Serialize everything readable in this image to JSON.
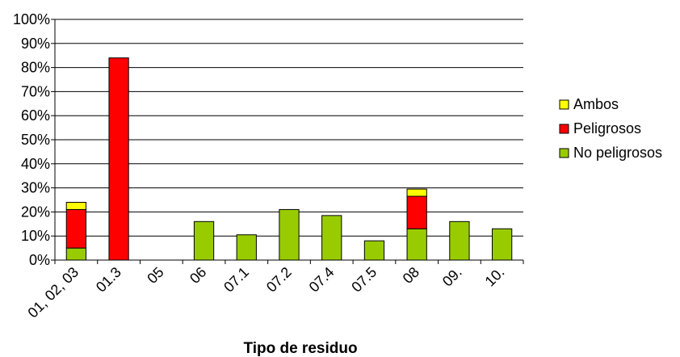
{
  "chart_data": {
    "type": "bar",
    "stacked": true,
    "title": "",
    "xlabel": "Tipo de residuo",
    "ylabel": "",
    "ylim": [
      0,
      100
    ],
    "yticks": [
      "0%",
      "10%",
      "20%",
      "30%",
      "40%",
      "50%",
      "60%",
      "70%",
      "80%",
      "90%",
      "100%"
    ],
    "categories": [
      "01, 02, 03",
      "01.3",
      "05",
      "06",
      "07.1",
      "07.2",
      "07.4",
      "07.5",
      "08",
      "09.",
      "10."
    ],
    "series": [
      {
        "name": "No peligrosos",
        "color": "#99cc00",
        "values": [
          5,
          0,
          0,
          16,
          10.5,
          21,
          18.5,
          8,
          13,
          16,
          13
        ]
      },
      {
        "name": "Peligrosos",
        "color": "#ff0000",
        "values": [
          16,
          84,
          0,
          0,
          0,
          0,
          0,
          0,
          13.5,
          0,
          0
        ]
      },
      {
        "name": "Ambos",
        "color": "#ffff00",
        "values": [
          3,
          0,
          0,
          0,
          0,
          0,
          0,
          0,
          3,
          0,
          0
        ]
      }
    ],
    "legend": {
      "position": "right",
      "order": [
        "Ambos",
        "Peligrosos",
        "No peligrosos"
      ]
    },
    "grid": true
  }
}
